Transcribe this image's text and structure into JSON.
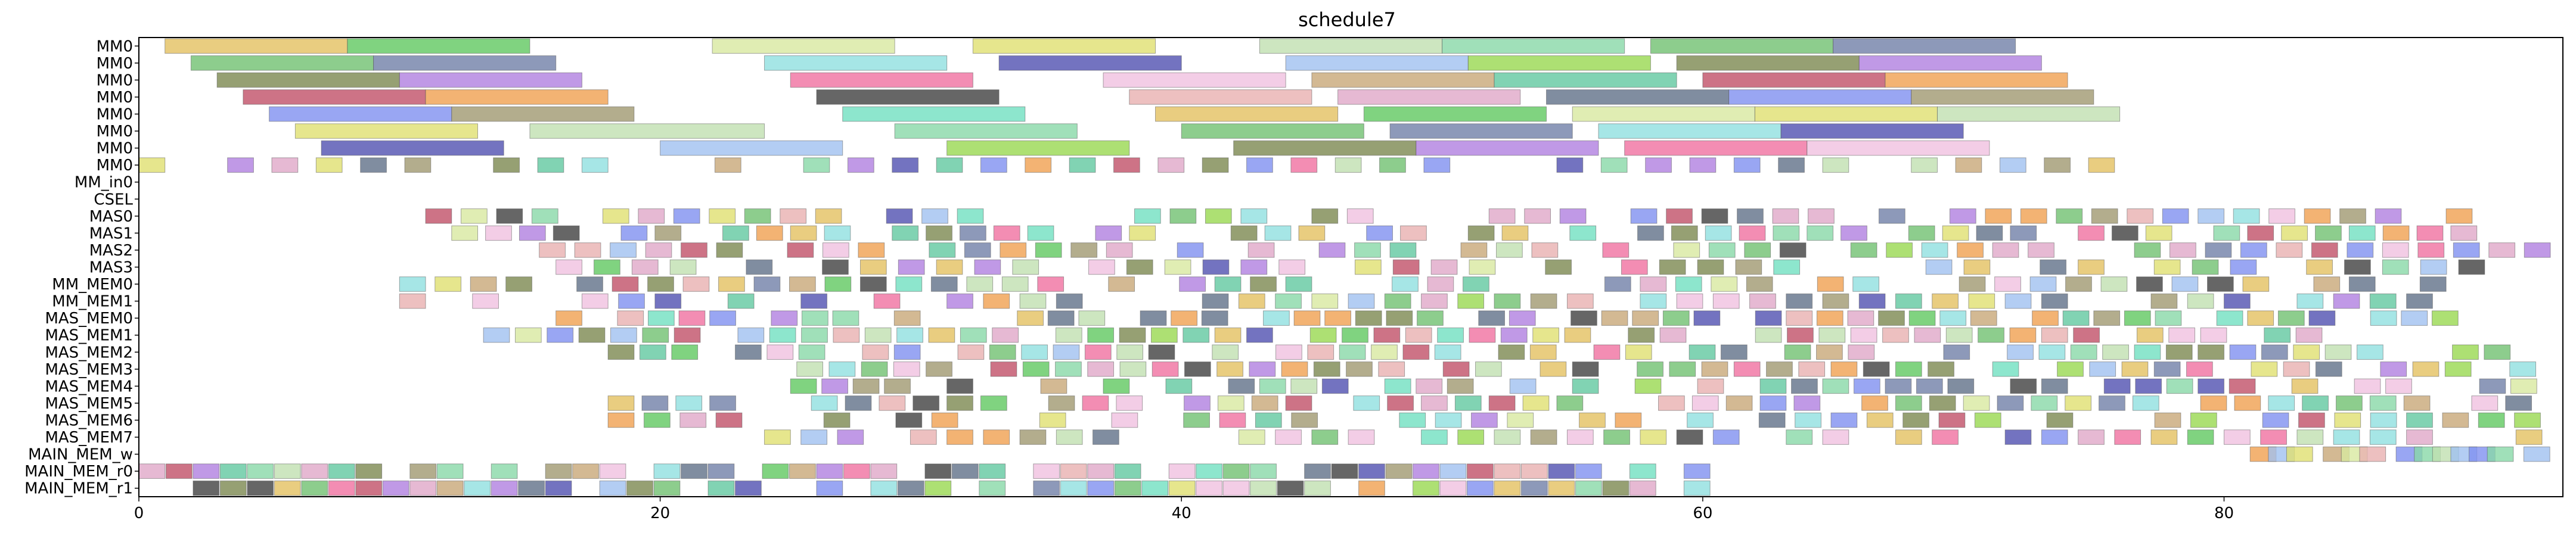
{
  "chart_data": {
    "type": "gantt",
    "title": "schedule7",
    "xlabel": "",
    "ylabel": "",
    "xlim": [
      0,
      93
    ],
    "x_ticks": [
      0,
      20,
      40,
      60,
      80
    ],
    "grid": false,
    "rows": [
      "MM0",
      "MM0",
      "MM0",
      "MM0",
      "MM0",
      "MM0",
      "MM0",
      "MM0",
      "MM_in0",
      "CSEL",
      "MAS0",
      "MAS1",
      "MAS2",
      "MAS3",
      "MM_MEM0",
      "MM_MEM1",
      "MAS_MEM0",
      "MAS_MEM1",
      "MAS_MEM2",
      "MAS_MEM3",
      "MAS_MEM4",
      "MAS_MEM5",
      "MAS_MEM6",
      "MAS_MEM7",
      "MAIN_MEM_w",
      "MAIN_MEM_r0",
      "MAIN_MEM_r1"
    ],
    "palette": [
      "#e3c060",
      "#98d850",
      "#e0a8c8",
      "#70c070",
      "#62c8a0",
      "#60c860",
      "#7c8850",
      "#607088",
      "#7080a8",
      "#c05068",
      "#d8e8a0",
      "#b080e0",
      "#8090f0",
      "#90e0e0",
      "#f0a050",
      "#e0e070",
      "#f070a0",
      "#a09870",
      "#5050b0",
      "#404040",
      "#c0e0b0",
      "#f0c0e0",
      "#70e0c0",
      "#a0c0f0",
      "#e8b0b0",
      "#88d8a8",
      "#c8a878"
    ],
    "series": [
      {
        "row": 0,
        "segments": [
          [
            1,
            8
          ],
          [
            8,
            15
          ],
          [
            22,
            29
          ],
          [
            32,
            39
          ],
          [
            43,
            50
          ],
          [
            50,
            57
          ],
          [
            58,
            65
          ],
          [
            65,
            72
          ]
        ]
      },
      {
        "row": 1,
        "segments": [
          [
            2,
            9
          ],
          [
            9,
            16
          ],
          [
            24,
            31
          ],
          [
            33,
            40
          ],
          [
            44,
            51
          ],
          [
            51,
            58
          ],
          [
            59,
            66
          ],
          [
            66,
            73
          ]
        ]
      },
      {
        "row": 2,
        "segments": [
          [
            3,
            10
          ],
          [
            10,
            17
          ],
          [
            25,
            32
          ],
          [
            37,
            44
          ],
          [
            45,
            52
          ],
          [
            52,
            59
          ],
          [
            60,
            67
          ],
          [
            67,
            74
          ]
        ]
      },
      {
        "row": 3,
        "segments": [
          [
            4,
            11
          ],
          [
            11,
            18
          ],
          [
            26,
            33
          ],
          [
            38,
            45
          ],
          [
            46,
            53
          ],
          [
            54,
            61
          ],
          [
            61,
            68
          ],
          [
            68,
            75
          ]
        ]
      },
      {
        "row": 4,
        "segments": [
          [
            5,
            12
          ],
          [
            12,
            19
          ],
          [
            27,
            34
          ],
          [
            39,
            46
          ],
          [
            47,
            54
          ],
          [
            55,
            62
          ],
          [
            62,
            69
          ],
          [
            69,
            76
          ]
        ]
      },
      {
        "row": 5,
        "segments": [
          [
            6,
            13
          ],
          [
            15,
            24
          ],
          [
            29,
            36
          ],
          [
            40,
            47
          ],
          [
            48,
            55
          ],
          [
            56,
            63
          ],
          [
            63,
            70
          ]
        ]
      },
      {
        "row": 6,
        "segments": [
          [
            7,
            14
          ],
          [
            20,
            27
          ],
          [
            31,
            38
          ],
          [
            42,
            49
          ],
          [
            49,
            56
          ],
          [
            57,
            64
          ],
          [
            64,
            71
          ]
        ]
      },
      {
        "row": 7,
        "count": 45,
        "start": 0,
        "step": 1.7
      },
      {
        "row": 9,
        "count": 0
      },
      {
        "row": 10,
        "count": 58,
        "start": 11,
        "step": 1.36
      },
      {
        "row": 11,
        "count": 60,
        "start": 12,
        "step": 1.3
      },
      {
        "row": 12,
        "count": 58,
        "start": 14,
        "step": 1.36
      },
      {
        "row": 13,
        "count": 55,
        "start": 16,
        "step": 1.46
      },
      {
        "row": 14,
        "count": 58,
        "start": 10,
        "step": 1.36
      },
      {
        "row": 15,
        "count": 56,
        "start": 10,
        "step": 1.4
      },
      {
        "row": 16,
        "count": 62,
        "start": 16,
        "step": 1.18
      },
      {
        "row": 17,
        "count": 60,
        "start": 12,
        "step": 1.22
      },
      {
        "row": 18,
        "count": 60,
        "start": 18,
        "step": 1.22
      },
      {
        "row": 19,
        "count": 58,
        "start": 24,
        "step": 1.24
      },
      {
        "row": 20,
        "count": 56,
        "start": 25,
        "step": 1.2
      },
      {
        "row": 21,
        "count": 58,
        "start": 18,
        "step": 1.3
      },
      {
        "row": 22,
        "count": 55,
        "start": 18,
        "step": 1.38
      },
      {
        "row": 23,
        "count": 52,
        "start": 24,
        "step": 1.4
      },
      {
        "row": 24,
        "count": 18,
        "start": 81,
        "step": 0.7
      },
      {
        "row": 25,
        "count": 58,
        "start": 0,
        "step": 1.04
      },
      {
        "row": 26,
        "count": 58,
        "start": 0,
        "step": 1.04
      }
    ]
  }
}
